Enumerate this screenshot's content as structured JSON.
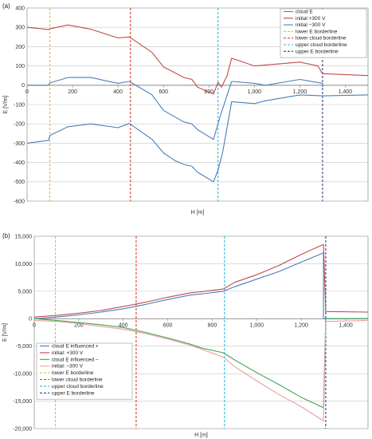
{
  "chart_data": [
    {
      "type": "line",
      "panel_label": "(a)",
      "xlabel": "H [m]",
      "ylabel": "E [V/m]",
      "xlim": [
        0,
        1500
      ],
      "ylim": [
        -600,
        400
      ],
      "xticks": [
        0,
        200,
        400,
        600,
        800,
        1000,
        1200,
        1400
      ],
      "xtick_labels": [
        "0",
        "200",
        "400",
        "600",
        "800",
        "1,000",
        "1,200",
        "1,400"
      ],
      "yticks": [
        -600,
        -500,
        -400,
        -300,
        -200,
        -100,
        0,
        100,
        200,
        300,
        400
      ],
      "ytick_labels": [
        "-600",
        "-500",
        "-400",
        "-300",
        "-200",
        "-100",
        "0",
        "100",
        "200",
        "300",
        "400"
      ],
      "grid": true,
      "legend_position": "top-right",
      "series": [
        {
          "name": "cloud E",
          "color": "#4a7ebb",
          "x": [
            0,
            95,
            100,
            180,
            280,
            400,
            450,
            550,
            600,
            690,
            725,
            750,
            820,
            850,
            900,
            1000,
            1050,
            1200,
            1300,
            1300
          ],
          "y": [
            0,
            0,
            12,
            40,
            40,
            10,
            20,
            -50,
            -130,
            -190,
            -200,
            -230,
            -280,
            -160,
            20,
            10,
            0,
            30,
            10,
            -10
          ]
        },
        {
          "name": "initial +300 V",
          "color": "#be4b48",
          "x": [
            0,
            95,
            100,
            180,
            280,
            400,
            450,
            550,
            600,
            690,
            725,
            750,
            820,
            840,
            855,
            880,
            900,
            1000,
            1050,
            1200,
            1280,
            1300,
            1500
          ],
          "y": [
            300,
            288,
            292,
            312,
            290,
            245,
            250,
            170,
            95,
            40,
            30,
            -10,
            -45,
            15,
            -10,
            50,
            140,
            100,
            105,
            120,
            100,
            60,
            50
          ]
        },
        {
          "name": "initial −300 V",
          "color": "#4a7ebb",
          "x": [
            0,
            95,
            100,
            180,
            280,
            400,
            450,
            550,
            600,
            650,
            690,
            725,
            750,
            820,
            840,
            860,
            900,
            1000,
            1050,
            1200,
            1300,
            1500
          ],
          "y": [
            -300,
            -285,
            -260,
            -215,
            -200,
            -220,
            -198,
            -280,
            -350,
            -390,
            -410,
            -420,
            -450,
            -500,
            -440,
            -350,
            -85,
            -95,
            -80,
            -50,
            -55,
            -50
          ]
        }
      ],
      "borderlines": [
        {
          "name": "lower E borderline",
          "x": 100,
          "color": "#f2b233"
        },
        {
          "name": "lower cloud borderline",
          "x": 455,
          "color": "#d93a2b"
        },
        {
          "name": "upper cloud borderline",
          "x": 840,
          "color": "#2fb6d8"
        },
        {
          "name": "upper E borderline",
          "x": 1300,
          "color": "#2e3f8f"
        }
      ]
    },
    {
      "type": "line",
      "panel_label": "(b)",
      "xlabel": "H [m]",
      "ylabel": "E [V/m]",
      "xlim": [
        0,
        1500
      ],
      "ylim": [
        -20000,
        15000
      ],
      "xticks": [
        0,
        200,
        400,
        600,
        800,
        1000,
        1200,
        1400
      ],
      "xtick_labels": [
        "0",
        "200",
        "400",
        "600",
        "800",
        "1,000",
        "1,200",
        "1,400"
      ],
      "yticks": [
        -20000,
        -15000,
        -10000,
        -5000,
        0,
        5000,
        10000,
        15000
      ],
      "ytick_labels": [
        "-20,000",
        "-15,000",
        "-10,000",
        "-5,000",
        "0",
        "5,000",
        "10,000",
        "15,000"
      ],
      "grid": true,
      "legend_position": "bottom-left",
      "series": [
        {
          "name": "cloud E influenced +",
          "color": "#4a7ebb",
          "x": [
            0,
            100,
            200,
            300,
            400,
            500,
            600,
            700,
            750,
            850,
            900,
            1000,
            1100,
            1200,
            1300,
            1300,
            1500
          ],
          "y": [
            0,
            300,
            700,
            1200,
            1800,
            2600,
            3500,
            4300,
            4500,
            5000,
            5800,
            7200,
            8600,
            10300,
            12000,
            0,
            0
          ]
        },
        {
          "name": "initial: +300 V",
          "color": "#be4b48",
          "x": [
            0,
            100,
            200,
            300,
            400,
            500,
            600,
            700,
            750,
            850,
            900,
            1000,
            1100,
            1200,
            1300,
            1310,
            1500
          ],
          "y": [
            300,
            600,
            1000,
            1500,
            2200,
            3000,
            3900,
            4700,
            4900,
            5400,
            6600,
            8000,
            9700,
            11700,
            13500,
            1300,
            1200
          ]
        },
        {
          "name": "cloud E influenced –",
          "color": "#3fa84a",
          "x": [
            0,
            100,
            200,
            300,
            400,
            500,
            600,
            700,
            750,
            850,
            900,
            1000,
            1100,
            1200,
            1300,
            1310,
            1500
          ],
          "y": [
            0,
            -300,
            -700,
            -1100,
            -1600,
            -2500,
            -3500,
            -4600,
            -5300,
            -6200,
            -7500,
            -9800,
            -12000,
            -14300,
            -16200,
            0,
            0
          ]
        },
        {
          "name": "initial: –300 V",
          "color": "#e8a0a0",
          "x": [
            0,
            100,
            200,
            300,
            400,
            500,
            600,
            700,
            750,
            850,
            900,
            1000,
            1100,
            1200,
            1300,
            1310,
            1500
          ],
          "y": [
            -300,
            -500,
            -900,
            -1400,
            -1900,
            -2700,
            -3700,
            -4800,
            -5500,
            -7000,
            -8700,
            -11300,
            -13800,
            -16000,
            -18600,
            -500,
            -300
          ]
        }
      ],
      "borderlines": [
        {
          "name": "lower E borderline",
          "x": 95,
          "color": "#f2b233"
        },
        {
          "name": "lower cloud borderline",
          "x": 458,
          "color": "#d93a2b"
        },
        {
          "name": "upper cloud borderline",
          "x": 855,
          "color": "#2fb6d8"
        },
        {
          "name": "upper E borderline",
          "x": 1310,
          "color": "#2e3f8f"
        }
      ]
    }
  ]
}
